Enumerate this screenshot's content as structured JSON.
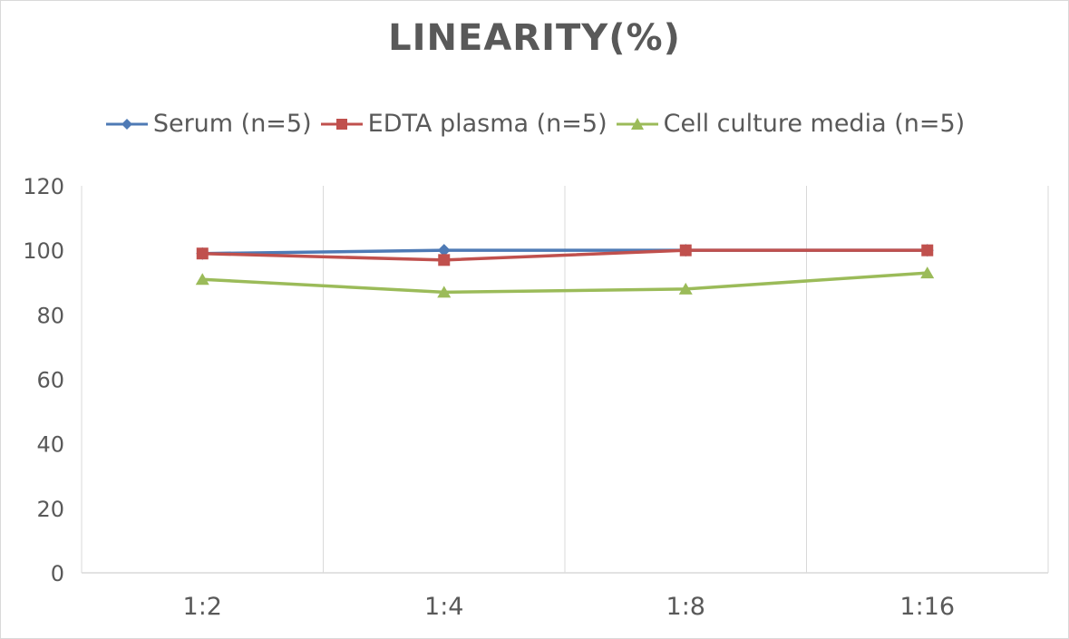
{
  "chart_data": {
    "type": "line",
    "title": "LINEARITY(%)",
    "xlabel": "",
    "ylabel": "",
    "categories": [
      "1:2",
      "1:4",
      "1:8",
      "1:16"
    ],
    "ylim": [
      0,
      120
    ],
    "yticks": [
      0,
      20,
      40,
      60,
      80,
      100,
      120
    ],
    "grid": "vertical",
    "legend_position": "top",
    "series": [
      {
        "name": "Serum (n=5)",
        "values": [
          99,
          100,
          100,
          100
        ],
        "color": "#4e7ab5",
        "marker": "diamond"
      },
      {
        "name": "EDTA plasma (n=5)",
        "values": [
          99,
          97,
          100,
          100
        ],
        "color": "#c0504d",
        "marker": "square"
      },
      {
        "name": "Cell culture media (n=5)",
        "values": [
          91,
          87,
          88,
          93
        ],
        "color": "#9bbb59",
        "marker": "triangle"
      }
    ]
  }
}
